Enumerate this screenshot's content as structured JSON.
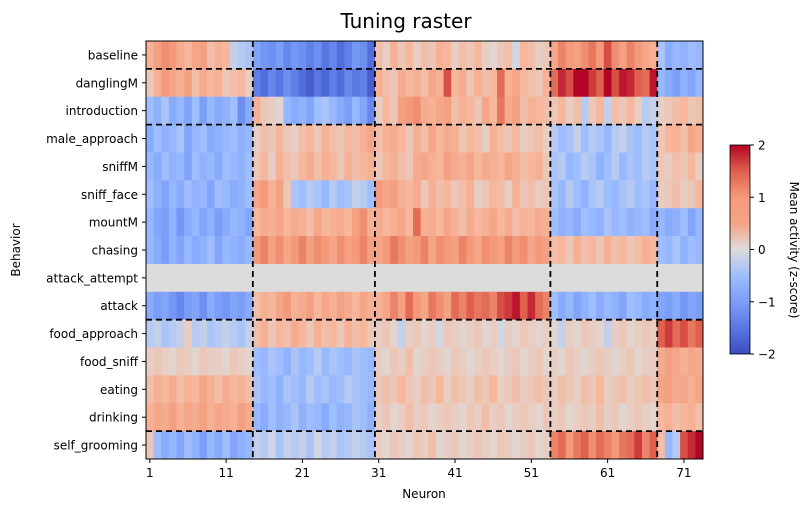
{
  "chart_data": {
    "type": "heatmap",
    "title": "Tuning raster",
    "xlabel": "Neuron",
    "ylabel": "Behavior",
    "colorbar_label": "Mean activity (z-score)",
    "colormap": "coolwarm",
    "vmin": -2,
    "vmax": 2,
    "n_neurons": 73,
    "x_ticks": [
      1,
      11,
      21,
      31,
      41,
      51,
      61,
      71
    ],
    "colorbar_ticks": [
      2,
      1,
      0,
      -1,
      -2
    ],
    "behaviors": [
      "baseline",
      "danglingM",
      "introduction",
      "male_approach",
      "sniffM",
      "sniff_face",
      "mountM",
      "chasing",
      "attack_attempt",
      "attack",
      "food_approach",
      "food_sniff",
      "eating",
      "drinking",
      "self_grooming"
    ],
    "grid": false,
    "row_boundaries_after": [
      "baseline",
      "introduction",
      "attack",
      "drinking"
    ],
    "cluster_boundaries_after_neuron": [
      14,
      30,
      53,
      67
    ],
    "values": [
      [
        0.6,
        0.9,
        1.1,
        1.0,
        0.7,
        0.5,
        0.8,
        0.9,
        0.4,
        0.6,
        0.5,
        -0.2,
        -0.3,
        -0.4,
        -0.9,
        -1.1,
        -1.2,
        -1.0,
        -1.3,
        -1.1,
        -1.2,
        -1.4,
        -1.2,
        -1.5,
        -1.3,
        -1.6,
        -1.4,
        -1.1,
        -1.2,
        -1.6,
        0.4,
        0.2,
        0.6,
        0.3,
        0.5,
        0.2,
        0.4,
        0.3,
        0.6,
        0.5,
        0.2,
        0.4,
        0.3,
        0.5,
        0.2,
        0.1,
        0.3,
        0.4,
        -0.1,
        0.5,
        0.4,
        0.2,
        0.3,
        0.8,
        1.2,
        1.0,
        0.9,
        1.1,
        1.3,
        1.0,
        1.6,
        1.1,
        0.9,
        1.2,
        1.0,
        0.8,
        0.6,
        -0.4,
        -0.8,
        -0.6,
        -0.7,
        -0.5,
        -0.6
      ],
      [
        0.3,
        0.6,
        1.0,
        0.8,
        0.6,
        0.9,
        0.4,
        0.7,
        0.5,
        0.6,
        0.3,
        0.4,
        0.5,
        0.2,
        -1.4,
        -1.6,
        -1.3,
        -1.5,
        -1.2,
        -1.4,
        -1.6,
        -1.8,
        -1.5,
        -1.7,
        -1.4,
        -1.6,
        -1.3,
        -1.5,
        -1.4,
        -1.8,
        0.6,
        0.4,
        0.3,
        0.7,
        0.5,
        0.6,
        0.4,
        0.8,
        0.6,
        1.6,
        0.5,
        0.7,
        0.3,
        0.6,
        0.4,
        0.5,
        1.4,
        0.6,
        0.8,
        0.5,
        0.4,
        0.3,
        0.6,
        1.4,
        1.8,
        1.6,
        2.0,
        2.0,
        1.7,
        1.5,
        2.0,
        1.6,
        1.9,
        1.8,
        1.5,
        1.4,
        1.9,
        -0.6,
        -0.8,
        -1.0,
        -0.7,
        -0.9,
        -0.6
      ],
      [
        -0.5,
        -0.7,
        -0.4,
        -0.8,
        -0.6,
        -0.9,
        -0.5,
        -1.0,
        -0.6,
        -0.8,
        -0.7,
        -0.5,
        -1.2,
        -0.8,
        0.6,
        0.3,
        0.2,
        0.1,
        -0.6,
        -0.8,
        -0.7,
        -0.9,
        -0.5,
        -0.4,
        -0.6,
        -0.8,
        -1.0,
        -0.6,
        -0.9,
        -1.3,
        0.2,
        0.5,
        0.3,
        0.9,
        1.0,
        1.1,
        0.7,
        0.6,
        0.8,
        0.9,
        0.4,
        0.6,
        0.5,
        0.3,
        0.8,
        0.5,
        1.3,
        0.7,
        0.9,
        0.4,
        0.6,
        0.5,
        0.4,
        0.3,
        0.5,
        0.2,
        0.4,
        -0.3,
        0.3,
        0.5,
        -0.2,
        0.4,
        0.3,
        0.5,
        0.2,
        -0.3,
        -0.2,
        0.2,
        0.3,
        0.4,
        0.5,
        0.3,
        0.4
      ],
      [
        -0.8,
        -0.5,
        -0.7,
        -0.6,
        -0.4,
        -0.9,
        -0.6,
        -0.5,
        -0.8,
        -0.7,
        -0.6,
        -0.5,
        -0.7,
        -0.6,
        0.2,
        0.4,
        0.3,
        0.5,
        0.3,
        0.2,
        0.4,
        0.5,
        0.3,
        0.6,
        0.4,
        0.3,
        0.5,
        0.4,
        0.6,
        0.8,
        0.4,
        0.6,
        0.7,
        0.5,
        0.3,
        0.6,
        0.4,
        0.8,
        0.5,
        0.7,
        0.6,
        0.3,
        0.5,
        0.4,
        0.2,
        0.6,
        0.4,
        0.3,
        0.5,
        0.2,
        0.3,
        0.4,
        0.2,
        -0.3,
        -0.5,
        -0.4,
        -0.2,
        -0.5,
        -0.3,
        -0.4,
        -0.6,
        -0.3,
        -0.2,
        -0.4,
        -0.5,
        -0.3,
        -0.4,
        0.3,
        0.5,
        0.6,
        0.4,
        0.8,
        0.6
      ],
      [
        -0.6,
        -0.8,
        -0.5,
        -0.7,
        -0.6,
        -0.9,
        -0.5,
        -0.7,
        -0.6,
        -0.8,
        -0.5,
        -0.6,
        -0.7,
        -0.5,
        0.3,
        0.5,
        0.2,
        0.6,
        0.4,
        0.3,
        0.5,
        0.7,
        0.4,
        0.6,
        0.5,
        0.3,
        0.6,
        0.4,
        0.5,
        0.6,
        0.3,
        0.5,
        0.6,
        0.4,
        0.3,
        0.7,
        0.8,
        0.6,
        0.5,
        0.9,
        0.7,
        0.6,
        0.8,
        0.5,
        0.7,
        0.6,
        0.5,
        0.8,
        0.6,
        0.4,
        0.5,
        0.6,
        0.3,
        -0.4,
        -0.3,
        -0.6,
        -0.5,
        -0.3,
        -0.4,
        -0.7,
        -0.5,
        -0.3,
        -0.6,
        -0.4,
        -0.5,
        -0.3,
        -0.4,
        0.3,
        0.2,
        0.4,
        0.3,
        0.5,
        0.2
      ],
      [
        -0.5,
        -0.7,
        -0.9,
        -0.6,
        -0.8,
        -0.5,
        -0.7,
        -0.6,
        -0.9,
        -0.5,
        -0.6,
        -0.8,
        -0.7,
        -0.5,
        0.8,
        1.0,
        0.6,
        0.9,
        0.3,
        -0.4,
        -0.5,
        -0.3,
        -0.4,
        -0.6,
        -0.3,
        -0.5,
        -0.4,
        -0.2,
        -0.3,
        -0.5,
        1.0,
        0.8,
        0.9,
        0.6,
        0.5,
        0.7,
        0.3,
        0.6,
        0.4,
        0.5,
        0.3,
        0.4,
        0.6,
        0.2,
        0.3,
        0.5,
        0.4,
        0.2,
        0.6,
        0.3,
        0.4,
        0.2,
        0.3,
        -0.4,
        -0.6,
        -0.3,
        -0.5,
        -0.7,
        -0.4,
        -0.3,
        -0.5,
        -0.6,
        -0.4,
        -0.3,
        -0.5,
        -0.4,
        -0.6,
        0.2,
        0.3,
        0.4,
        0.2,
        0.3,
        0.5
      ],
      [
        -0.6,
        -0.9,
        -1.0,
        -0.7,
        -1.1,
        -0.8,
        -0.6,
        -0.9,
        -0.7,
        -1.0,
        -0.8,
        -0.6,
        -0.7,
        -0.9,
        0.5,
        0.7,
        0.6,
        0.8,
        0.5,
        0.7,
        0.6,
        0.4,
        0.8,
        0.5,
        0.6,
        0.7,
        0.5,
        0.9,
        1.1,
        0.6,
        0.7,
        0.5,
        0.6,
        0.8,
        0.5,
        1.4,
        0.6,
        0.7,
        0.5,
        0.8,
        0.6,
        0.4,
        0.7,
        0.5,
        0.6,
        0.8,
        0.5,
        0.7,
        0.4,
        0.6,
        0.5,
        0.7,
        0.6,
        -0.5,
        -0.7,
        -0.6,
        -0.8,
        -0.5,
        -0.6,
        -0.7,
        -0.4,
        -0.6,
        -0.5,
        -0.7,
        -0.6,
        -0.5,
        -0.8,
        -0.6,
        -0.8,
        -0.7,
        -0.5,
        -0.9,
        -0.6
      ],
      [
        -0.6,
        -0.8,
        -1.0,
        -0.7,
        -0.9,
        -0.6,
        -0.8,
        -0.7,
        -0.5,
        -0.9,
        -0.6,
        -0.7,
        -0.8,
        -0.6,
        1.0,
        1.2,
        0.9,
        1.1,
        0.8,
        1.0,
        1.2,
        0.9,
        1.1,
        1.0,
        0.8,
        1.1,
        0.9,
        1.0,
        1.2,
        0.9,
        0.8,
        1.0,
        1.3,
        1.1,
        0.9,
        1.0,
        1.2,
        0.8,
        1.1,
        1.0,
        0.9,
        1.2,
        1.0,
        0.8,
        1.1,
        1.0,
        0.9,
        1.2,
        1.0,
        1.1,
        0.8,
        1.0,
        0.9,
        0.4,
        0.5,
        0.3,
        0.6,
        0.4,
        0.5,
        0.3,
        0.6,
        0.4,
        0.5,
        0.3,
        0.4,
        0.6,
        0.5,
        -0.5,
        -0.6,
        -0.4,
        -0.7,
        -0.5,
        -0.6
      ],
      [
        0,
        0,
        0,
        0,
        0,
        0,
        0,
        0,
        0,
        0,
        0,
        0,
        0,
        0,
        0,
        0,
        0,
        0,
        0,
        0,
        0,
        0,
        0,
        0,
        0,
        0,
        0,
        0,
        0,
        0,
        0,
        0,
        0,
        0,
        0,
        0,
        0,
        0,
        0,
        0,
        0,
        0,
        0,
        0,
        0,
        0,
        0,
        0,
        0,
        0,
        0,
        0,
        0,
        0,
        0,
        0,
        0,
        0,
        0,
        0,
        0,
        0,
        0,
        0,
        0,
        0,
        0,
        0,
        0,
        0,
        0,
        0,
        0
      ],
      [
        -0.8,
        -1.0,
        -0.9,
        -1.1,
        -1.3,
        -1.0,
        -0.9,
        -1.2,
        -0.8,
        -1.0,
        -1.1,
        -0.9,
        -1.0,
        -0.8,
        0.4,
        0.6,
        0.5,
        0.8,
        1.0,
        0.6,
        0.7,
        0.9,
        0.5,
        0.8,
        0.6,
        0.9,
        0.7,
        0.5,
        0.8,
        0.6,
        0.6,
        0.8,
        1.2,
        0.9,
        1.4,
        1.0,
        0.8,
        1.3,
        1.1,
        0.9,
        1.4,
        1.2,
        1.5,
        1.3,
        1.4,
        1.2,
        1.6,
        1.7,
        1.9,
        1.5,
        1.8,
        1.4,
        1.2,
        -0.5,
        -0.8,
        -0.6,
        -0.9,
        -0.7,
        -0.5,
        -0.8,
        -0.6,
        -0.7,
        -0.9,
        -0.5,
        -0.6,
        -0.8,
        -0.7,
        -0.9,
        -1.0,
        -0.8,
        -1.1,
        -0.9,
        -1.0
      ],
      [
        -0.3,
        -0.2,
        -0.4,
        -0.3,
        -0.2,
        0.2,
        -0.3,
        -0.2,
        -0.4,
        -0.3,
        -0.2,
        -0.3,
        -0.4,
        -0.2,
        0.4,
        0.6,
        0.3,
        0.5,
        0.4,
        0.7,
        0.5,
        0.3,
        0.6,
        0.4,
        0.5,
        0.3,
        0.6,
        0.4,
        0.5,
        0.3,
        0.2,
        0.3,
        0.1,
        -0.2,
        0.2,
        0.3,
        0.1,
        0.2,
        -0.1,
        0.3,
        0.2,
        0.1,
        0.2,
        0.3,
        0.1,
        0.2,
        -0.1,
        0.2,
        0.1,
        0.3,
        0.2,
        0.1,
        0.2,
        0.1,
        -0.2,
        0.2,
        0.1,
        0.3,
        0.2,
        0.1,
        -0.2,
        0.2,
        0.3,
        0.1,
        0.2,
        0.3,
        0.2,
        1.5,
        1.7,
        1.4,
        1.6,
        1.3,
        1.5
      ],
      [
        0.2,
        0.3,
        0.2,
        0.1,
        0.3,
        0.2,
        0.1,
        0.3,
        0.2,
        0.2,
        0.1,
        0.3,
        0.2,
        0.1,
        -0.5,
        -0.6,
        -0.4,
        -0.5,
        -0.7,
        -0.4,
        -0.6,
        -0.5,
        -0.3,
        -0.6,
        -0.4,
        -0.5,
        -0.6,
        -0.4,
        -0.5,
        -0.6,
        0.2,
        0.1,
        0.3,
        0.2,
        0.4,
        0.1,
        0.2,
        0.3,
        0.2,
        0.1,
        0.3,
        0.2,
        0.1,
        0.2,
        0.3,
        0.2,
        0.1,
        0.2,
        0.3,
        0.1,
        0.2,
        0.3,
        0.1,
        0.2,
        0.1,
        0.3,
        0.2,
        0.1,
        0.2,
        0.3,
        0.2,
        0.1,
        0.2,
        0.3,
        0.1,
        0.2,
        0.2,
        0.7,
        0.9,
        0.8,
        0.6,
        0.8,
        0.7
      ],
      [
        0.4,
        0.6,
        0.5,
        0.7,
        0.4,
        0.6,
        0.5,
        0.8,
        0.6,
        0.4,
        0.7,
        0.5,
        0.6,
        0.4,
        -0.4,
        -0.6,
        -0.5,
        -0.7,
        -0.4,
        -0.5,
        -0.6,
        -0.3,
        -0.5,
        -0.4,
        -0.6,
        -0.5,
        -0.3,
        -0.4,
        -0.5,
        -0.6,
        0.3,
        0.4,
        0.3,
        0.5,
        0.3,
        0.2,
        0.4,
        0.3,
        0.5,
        0.2,
        0.4,
        0.3,
        0.2,
        0.4,
        0.3,
        0.5,
        0.2,
        0.3,
        0.4,
        0.2,
        0.3,
        0.4,
        0.3,
        0.2,
        0.4,
        0.3,
        0.2,
        0.4,
        0.3,
        0.5,
        0.2,
        0.3,
        0.4,
        0.2,
        0.3,
        0.4,
        0.3,
        0.8,
        0.9,
        0.7,
        0.8,
        0.6,
        0.8
      ],
      [
        0.6,
        0.8,
        0.7,
        0.9,
        0.6,
        0.8,
        0.7,
        0.9,
        0.6,
        0.8,
        0.7,
        0.6,
        0.9,
        0.7,
        -0.6,
        -0.8,
        -0.5,
        -0.7,
        -0.6,
        -0.4,
        -0.7,
        -0.5,
        -0.6,
        -0.8,
        -0.5,
        -0.7,
        -0.6,
        -0.4,
        -0.5,
        -0.7,
        0.2,
        0.3,
        0.1,
        0.2,
        0.4,
        0.2,
        0.3,
        0.1,
        0.2,
        0.3,
        0.2,
        0.1,
        0.3,
        0.2,
        0.4,
        0.2,
        0.3,
        0.1,
        0.2,
        0.3,
        0.2,
        0.1,
        0.3,
        0.2,
        0.3,
        0.1,
        0.2,
        0.3,
        0.2,
        0.4,
        0.2,
        0.3,
        0.1,
        0.2,
        0.3,
        0.2,
        0.1,
        0.5,
        0.6,
        0.4,
        0.5,
        0.6,
        0.4
      ],
      [
        0.3,
        -0.5,
        -0.8,
        -0.6,
        -0.9,
        -0.5,
        -0.7,
        -1.0,
        -0.6,
        -0.8,
        -0.5,
        -0.9,
        -0.7,
        -0.6,
        -0.2,
        -0.3,
        -0.1,
        -0.4,
        -0.2,
        -0.3,
        -0.2,
        -0.4,
        -0.1,
        -0.3,
        -0.2,
        -0.4,
        -0.3,
        -0.2,
        -0.3,
        -0.4,
        0.2,
        0.1,
        0.3,
        0.2,
        0.1,
        0.3,
        0.2,
        0.4,
        0.1,
        0.2,
        0.3,
        0.1,
        0.2,
        0.3,
        0.2,
        0.1,
        0.3,
        0.2,
        0.1,
        0.2,
        0.3,
        0.1,
        0.2,
        1.2,
        1.4,
        1.0,
        1.3,
        1.5,
        1.1,
        1.4,
        1.2,
        1.0,
        1.3,
        1.4,
        1.7,
        1.2,
        1.5,
        0.4,
        -0.6,
        -0.3,
        1.6,
        1.8,
        2.0
      ]
    ]
  }
}
